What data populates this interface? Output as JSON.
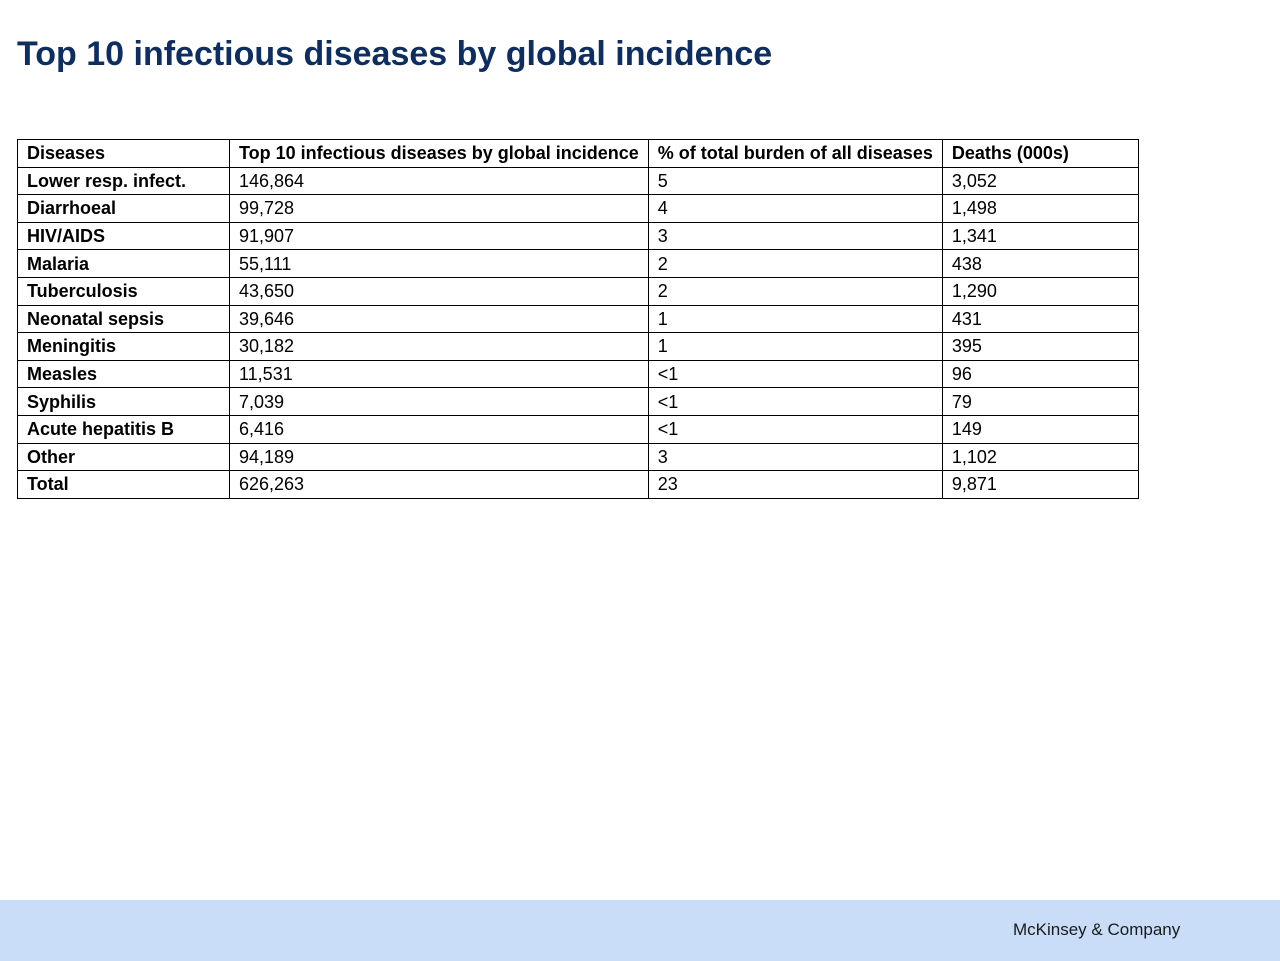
{
  "page": {
    "title": "Top 10 infectious diseases by global incidence"
  },
  "table": {
    "headers": [
      "Diseases",
      "Top 10 infectious diseases by global incidence",
      "% of total burden of all diseases",
      "Deaths (000s)"
    ],
    "rows": [
      [
        "Lower resp. infect.",
        "146,864",
        "5",
        "3,052"
      ],
      [
        "Diarrhoeal",
        "99,728",
        "4",
        "1,498"
      ],
      [
        "HIV/AIDS",
        "91,907",
        "3",
        "1,341"
      ],
      [
        "Malaria",
        "55,111",
        "2",
        "438"
      ],
      [
        "Tuberculosis",
        "43,650",
        "2",
        "1,290"
      ],
      [
        "Neonatal sepsis",
        "39,646",
        "1",
        "431"
      ],
      [
        "Meningitis",
        "30,182",
        "1",
        "395"
      ],
      [
        "Measles",
        "11,531",
        "<1",
        "96"
      ],
      [
        "Syphilis",
        "7,039",
        "<1",
        "79"
      ],
      [
        "Acute hepatitis B",
        "6,416",
        "<1",
        "149"
      ],
      [
        "Other",
        "94,189",
        "3",
        "1,102"
      ],
      [
        "Total",
        "626,263",
        "23",
        "9,871"
      ]
    ]
  },
  "footer": {
    "brand": "McKinsey & Company",
    "background_color": "#c9ddf8"
  },
  "colors": {
    "title": "#0d2e5e"
  }
}
